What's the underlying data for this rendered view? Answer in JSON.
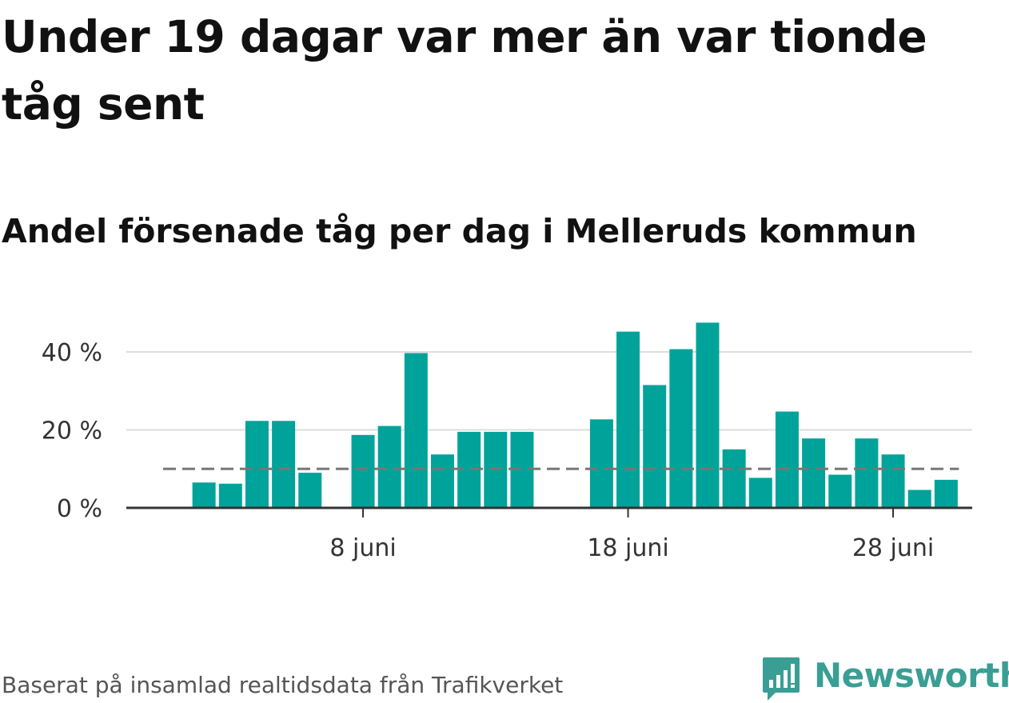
{
  "headline": "Under 19 dagar var mer än var tionde tåg sent",
  "subtitle": "Andel försenade tåg per dag i Melleruds kommun",
  "source": "Baserat på insamlad realtidsdata från Trafikverket",
  "brand": {
    "name": "Newsworthy",
    "icon": "newsworthy-logo-icon",
    "color": "#3a9e94"
  },
  "colors": {
    "bar": "#00a39a",
    "grid": "#dddddd",
    "axis": "#333333",
    "reference": "#777777",
    "tick_text": "#333333"
  },
  "chart_data": {
    "type": "bar",
    "title": "Andel försenade tåg per dag i Melleruds kommun",
    "xlabel": "",
    "ylabel": "",
    "x_start_day": 1,
    "x_end_day": 30,
    "month": "juni",
    "days": [
      1,
      2,
      3,
      4,
      5,
      6,
      7,
      8,
      9,
      10,
      11,
      12,
      13,
      14,
      15,
      16,
      17,
      18,
      19,
      20,
      21,
      22,
      23,
      24,
      25,
      26,
      27,
      28,
      29,
      30
    ],
    "values": [
      null,
      6.5,
      6.2,
      22.3,
      22.3,
      9,
      null,
      18.7,
      21,
      39.7,
      13.7,
      19.5,
      19.5,
      19.5,
      null,
      null,
      22.7,
      45.2,
      31.5,
      40.7,
      47.5,
      15,
      7.7,
      24.7,
      17.8,
      8.5,
      17.8,
      13.7,
      4.6,
      7.2
    ],
    "reference_line": {
      "value": 10,
      "style": "dashed"
    },
    "ylim": [
      0,
      50
    ],
    "y_ticks": [
      0,
      20,
      40
    ],
    "y_tick_labels": [
      "0 %",
      "20 %",
      "40 %"
    ],
    "x_ticks": [
      8,
      18,
      28
    ],
    "x_tick_labels": [
      "8 juni",
      "18 juni",
      "28 juni"
    ],
    "grid": true
  }
}
